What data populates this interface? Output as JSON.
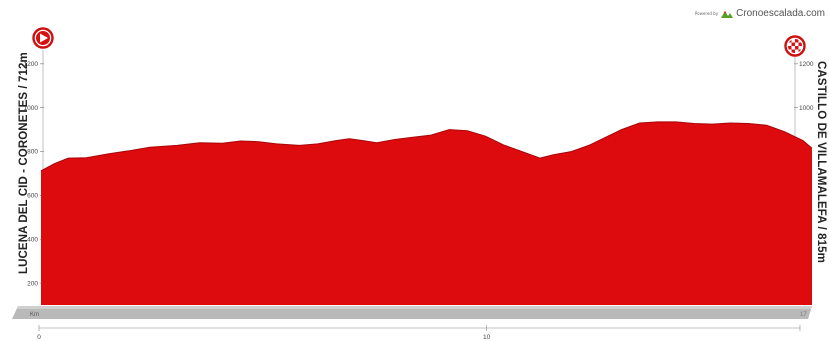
{
  "branding": {
    "powered_by": "Powered by",
    "name": "Cronoescalada.com",
    "logo_icon": "mountain-logo-icon"
  },
  "start": {
    "label": "LUCENA DEL CID - CORONETES / 712m",
    "icon": "play-marker-icon"
  },
  "finish": {
    "label": "CASTILLO DE VILLAMALEFA / 815m",
    "icon": "checkered-flag-icon"
  },
  "colors": {
    "profile_fill": "#dd0a0e",
    "profile_edge": "#a8070a",
    "base_strip": "#b9b9b9"
  },
  "chart_data": {
    "type": "area",
    "title": "",
    "xlabel": "Km",
    "ylabel": "",
    "xlim": [
      0,
      17
    ],
    "ylim": [
      100,
      1400
    ],
    "grid": false,
    "y_ticks": [
      200,
      400,
      600,
      800,
      1000,
      1200
    ],
    "x_ticks": [
      0,
      10
    ],
    "x_end_label": "17",
    "series": [
      {
        "x": [
          0,
          0.3,
          0.6,
          1.0,
          1.5,
          2.0,
          2.4,
          3.0,
          3.5,
          4.0,
          4.4,
          4.8,
          5.2,
          5.7,
          6.1,
          6.5,
          6.8,
          7.1,
          7.4,
          7.8,
          8.2,
          8.6,
          9.0,
          9.4,
          9.8,
          10.2,
          10.6,
          11.0,
          11.3,
          11.7,
          12.1,
          12.5,
          12.8,
          13.2,
          13.6,
          14.0,
          14.4,
          14.8,
          15.2,
          15.6,
          16.0,
          16.4,
          16.8,
          17.0
        ],
        "y": [
          712,
          745,
          770,
          772,
          790,
          805,
          820,
          828,
          840,
          838,
          848,
          845,
          835,
          828,
          835,
          850,
          858,
          850,
          840,
          855,
          865,
          875,
          900,
          895,
          870,
          830,
          800,
          770,
          785,
          800,
          830,
          870,
          900,
          930,
          935,
          935,
          928,
          925,
          930,
          928,
          920,
          890,
          850,
          815
        ]
      }
    ]
  }
}
